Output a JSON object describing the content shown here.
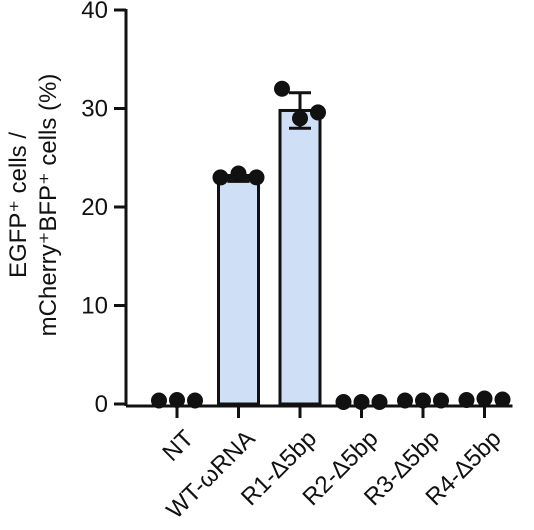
{
  "chart_data": {
    "type": "bar",
    "categories": [
      "NT",
      "WT-ωRNA",
      "R1-Δ5bp",
      "R2-Δ5bp",
      "R3-Δ5bp",
      "R4-Δ5bp"
    ],
    "values": [
      0.2,
      22.9,
      29.8,
      0.05,
      0.15,
      0.25
    ],
    "error": [
      0.1,
      0.3,
      1.8,
      0.05,
      0.05,
      0.1
    ],
    "points": [
      [
        0.15,
        0.2,
        0.15
      ],
      [
        22.8,
        23.2,
        22.8
      ],
      [
        31.8,
        28.8,
        29.4
      ],
      [
        0.0,
        0.0,
        0.0
      ],
      [
        0.15,
        0.15,
        0.15
      ],
      [
        0.2,
        0.35,
        0.25
      ]
    ],
    "show_bar": [
      false,
      true,
      true,
      false,
      false,
      false
    ],
    "ylim": [
      0,
      40
    ],
    "yticks": [
      "0",
      "10",
      "20",
      "30",
      "40"
    ],
    "ylabel_line1": "EGFP⁺ cells /",
    "ylabel_line2": "mCherry⁺BFP⁺ cells (%)",
    "xlabel": "",
    "title": "",
    "grid": false,
    "bar_color": "#cfe0f6",
    "point_color": "#111111"
  }
}
